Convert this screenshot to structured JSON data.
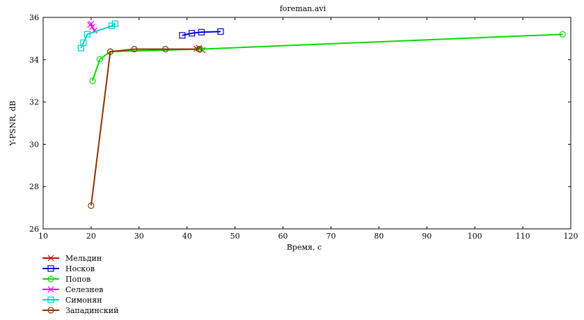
{
  "chart_data": {
    "type": "line",
    "title": "foreman.avi",
    "xlabel": "Время, с",
    "ylabel": "Y-PSNR, dB",
    "xlim": [
      10,
      120
    ],
    "ylim": [
      26,
      36
    ],
    "xticks": [
      10,
      20,
      30,
      40,
      50,
      60,
      70,
      80,
      90,
      100,
      110,
      120
    ],
    "yticks": [
      26,
      28,
      30,
      32,
      34,
      36
    ],
    "grid": false,
    "legend_position": "bottom-left, below plot",
    "series": [
      {
        "name": "Мельдин",
        "color": "#cc0000",
        "marker": "x",
        "x": [
          42.0,
          42.5,
          43.2
        ],
        "y": [
          34.52,
          34.55,
          34.45
        ]
      },
      {
        "name": "Носков",
        "color": "#0000cc",
        "marker": "square",
        "x": [
          39.0,
          41.0,
          43.0,
          47.0
        ],
        "y": [
          35.15,
          35.25,
          35.3,
          35.33
        ]
      },
      {
        "name": "Попов",
        "color": "#00dd00",
        "marker": "circle",
        "x": [
          20.3,
          21.8,
          24.0,
          42.8,
          118.3
        ],
        "y": [
          33.0,
          34.02,
          34.38,
          34.5,
          35.2
        ]
      },
      {
        "name": "Селезнев",
        "color": "#ee00ee",
        "marker": "x",
        "x": [
          19.8,
          20.0,
          20.2,
          20.7
        ],
        "y": [
          35.65,
          35.7,
          35.55,
          35.38
        ]
      },
      {
        "name": "Симонян",
        "color": "#00cccc",
        "marker": "square",
        "x": [
          17.9,
          18.4,
          19.2,
          24.3,
          25.0
        ],
        "y": [
          34.55,
          34.8,
          35.2,
          35.6,
          35.7
        ]
      },
      {
        "name": "Западинский",
        "color": "#883300",
        "marker": "circle",
        "x": [
          20.0,
          24.0,
          29.0,
          35.5,
          42.5
        ],
        "y": [
          27.1,
          34.38,
          34.5,
          34.5,
          34.5
        ]
      }
    ]
  }
}
